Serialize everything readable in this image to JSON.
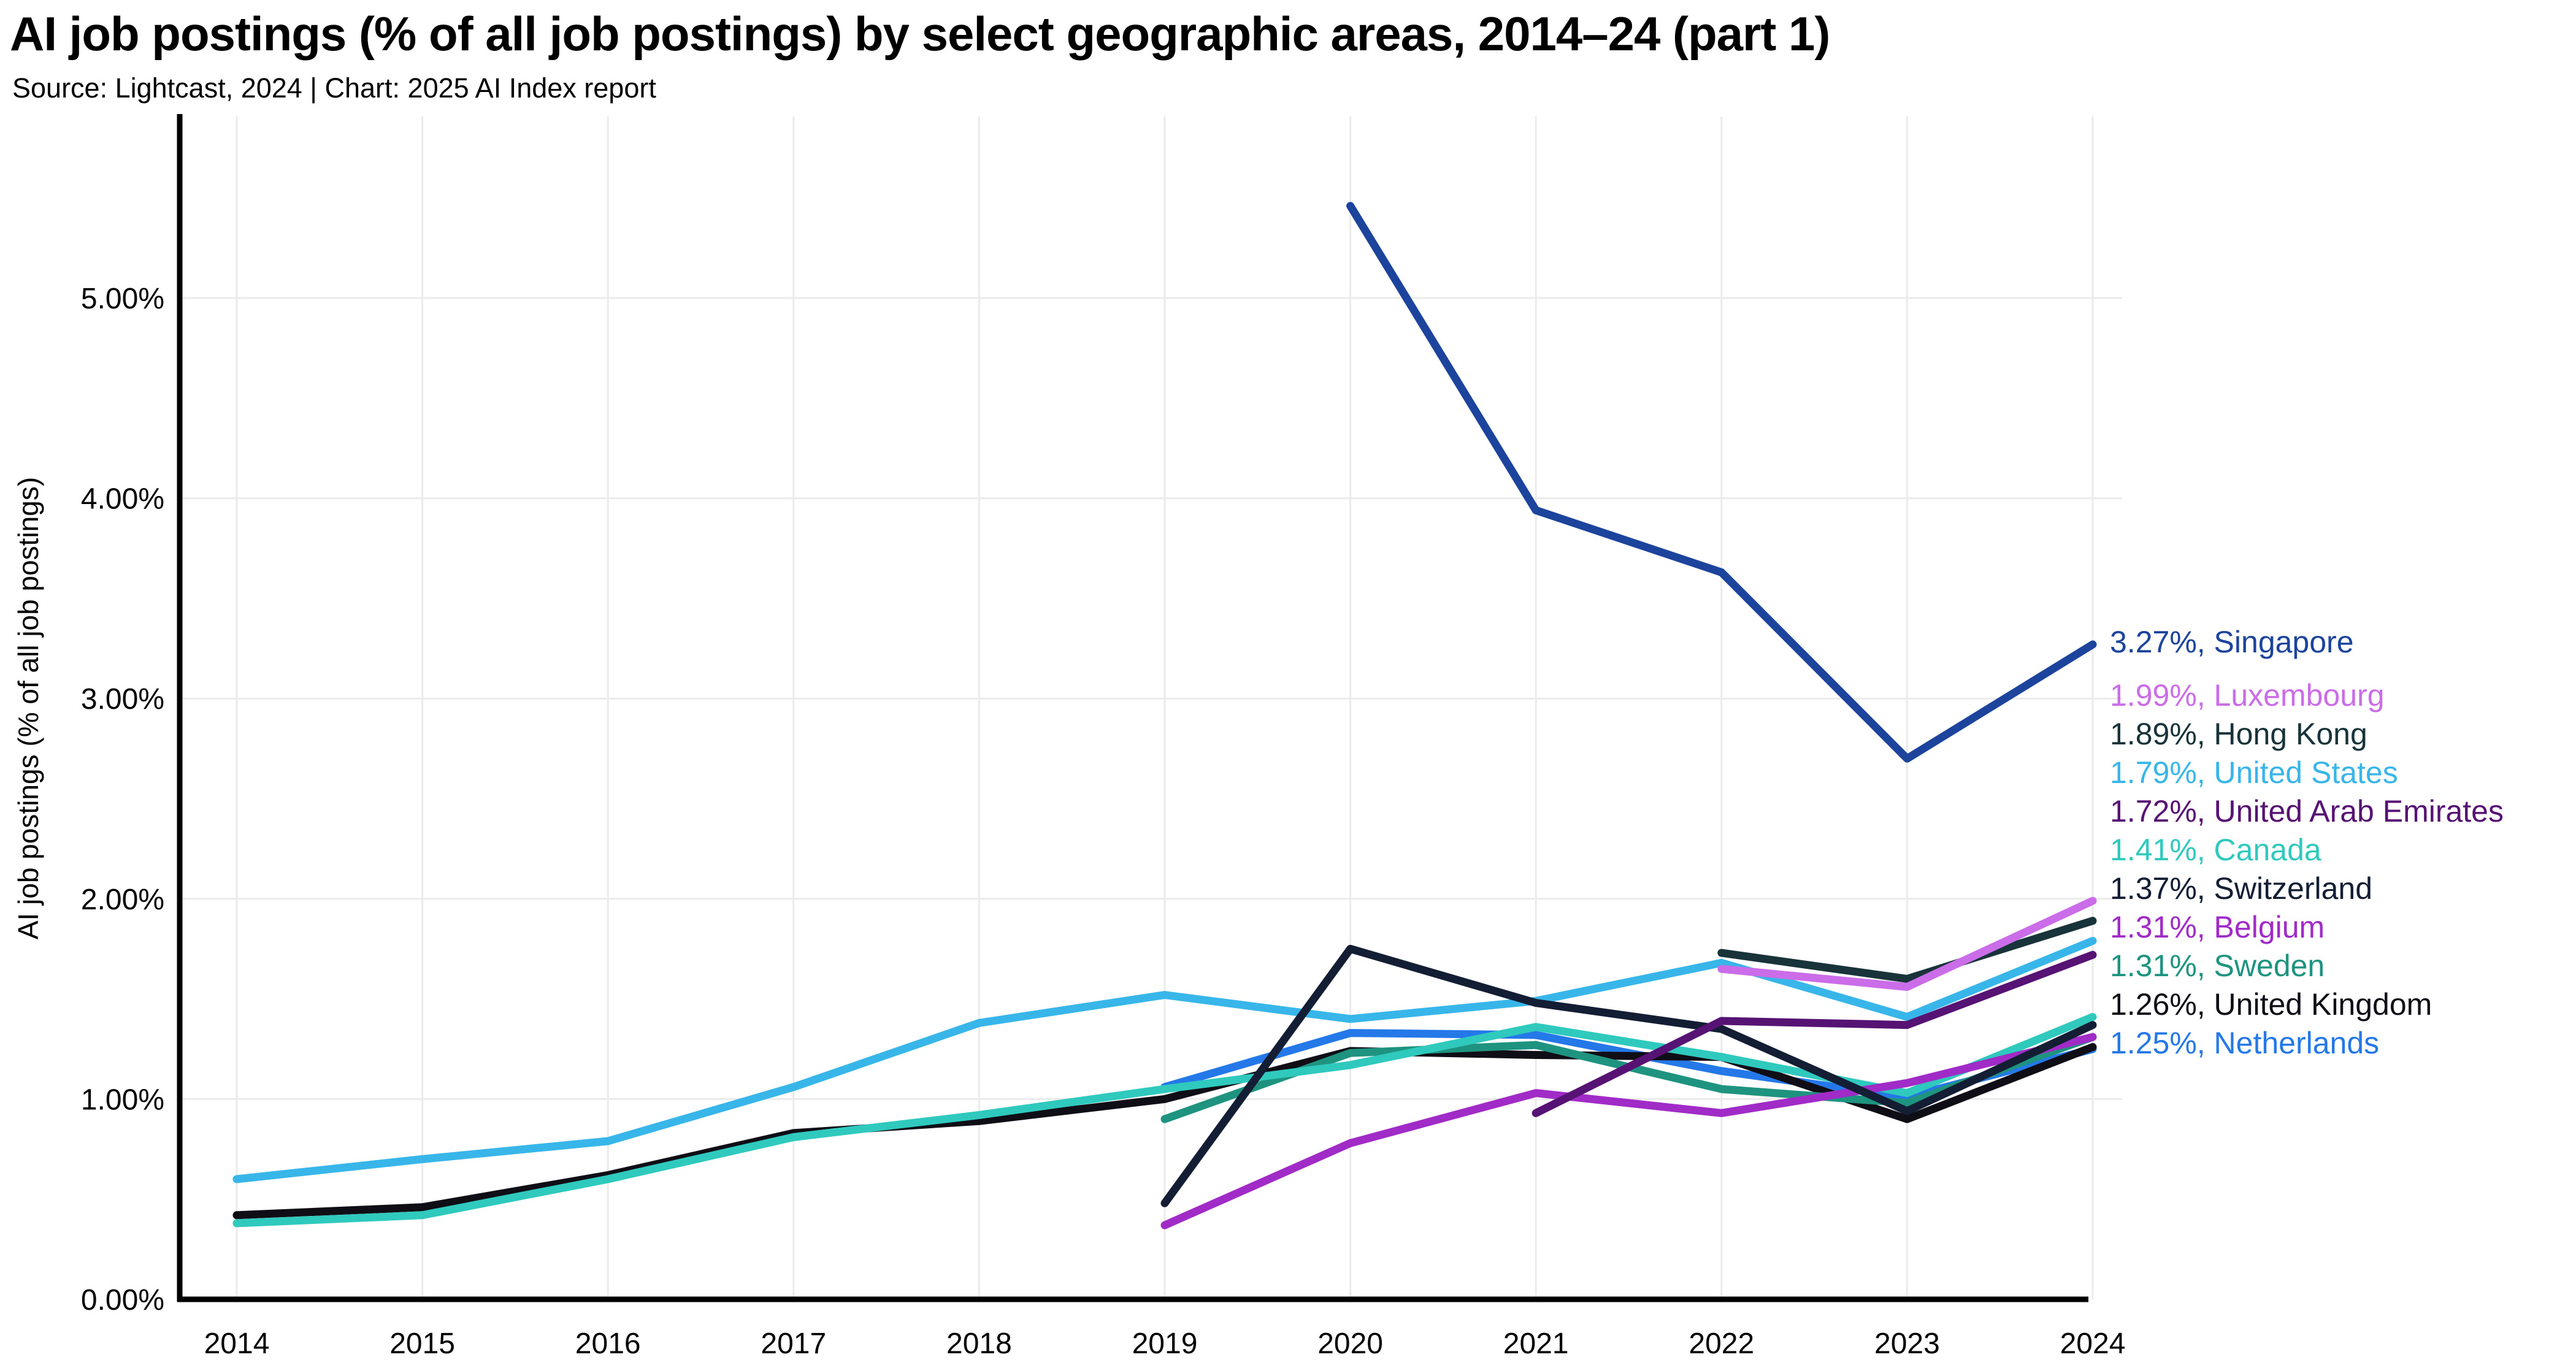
{
  "header": {
    "title": "AI job postings (% of all job postings) by select geographic areas, 2014–24 (part 1)",
    "subtitle": "Source: Lightcast, 2024 | Chart: 2025 AI Index report"
  },
  "chart_data": {
    "type": "line",
    "title": "AI job postings (% of all job postings) by select geographic areas, 2014–24 (part 1)",
    "xlabel": "",
    "ylabel": "AI job postings (% of all job postings)",
    "x": [
      2014,
      2015,
      2016,
      2017,
      2018,
      2019,
      2020,
      2021,
      2022,
      2023,
      2024
    ],
    "x_tick_labels": [
      "2014",
      "2015",
      "2016",
      "2017",
      "2018",
      "2019",
      "2020",
      "2021",
      "2022",
      "2023",
      "2024"
    ],
    "ylim": [
      0,
      5.9
    ],
    "yticks": [
      0,
      1,
      2,
      3,
      4,
      5
    ],
    "ytick_labels": [
      "0.00%",
      "1.00%",
      "2.00%",
      "3.00%",
      "4.00%",
      "5.00%"
    ],
    "grid": true,
    "legend_position": "right",
    "series": [
      {
        "name": "Singapore",
        "color": "#1c449c",
        "end_label": "3.27%, Singapore",
        "values": [
          null,
          null,
          null,
          null,
          null,
          null,
          5.46,
          3.94,
          3.63,
          2.7,
          3.27
        ]
      },
      {
        "name": "Luxembourg",
        "color": "#cb6ce8",
        "end_label": "1.99%, Luxembourg",
        "values": [
          null,
          null,
          null,
          null,
          null,
          null,
          null,
          null,
          1.65,
          1.56,
          1.99
        ]
      },
      {
        "name": "Hong Kong",
        "color": "#18333a",
        "end_label": "1.89%, Hong Kong",
        "values": [
          null,
          null,
          null,
          null,
          null,
          null,
          null,
          null,
          1.73,
          1.6,
          1.89
        ]
      },
      {
        "name": "United States",
        "color": "#39b6e9",
        "end_label": "1.79%, United States",
        "values": [
          0.6,
          0.7,
          0.79,
          1.06,
          1.38,
          1.52,
          1.4,
          1.49,
          1.68,
          1.41,
          1.79
        ]
      },
      {
        "name": "United Arab Emirates",
        "color": "#571373",
        "end_label": "1.72%, United Arab Emirates",
        "values": [
          null,
          null,
          null,
          null,
          null,
          null,
          null,
          0.93,
          1.39,
          1.37,
          1.72
        ]
      },
      {
        "name": "Canada",
        "color": "#2fc9bd",
        "end_label": "1.41%, Canada",
        "values": [
          0.38,
          0.42,
          0.6,
          0.81,
          0.92,
          1.05,
          1.17,
          1.36,
          1.21,
          1.03,
          1.41
        ]
      },
      {
        "name": "Switzerland",
        "color": "#131d33",
        "end_label": "1.37%, Switzerland",
        "values": [
          null,
          null,
          null,
          null,
          null,
          0.48,
          1.75,
          1.48,
          1.35,
          0.94,
          1.37
        ]
      },
      {
        "name": "Belgium",
        "color": "#a12bc7",
        "end_label": "1.31%, Belgium",
        "values": [
          null,
          null,
          null,
          null,
          null,
          0.37,
          0.78,
          1.03,
          0.93,
          1.08,
          1.31
        ]
      },
      {
        "name": "Sweden",
        "color": "#1e9480",
        "end_label": "1.31%, Sweden",
        "values": [
          null,
          null,
          null,
          null,
          null,
          0.9,
          1.23,
          1.27,
          1.05,
          0.98,
          1.31
        ]
      },
      {
        "name": "United Kingdom",
        "color": "#0f0d15",
        "end_label": "1.26%, United Kingdom",
        "values": [
          0.42,
          0.46,
          0.62,
          0.83,
          0.89,
          1.0,
          1.24,
          1.22,
          1.21,
          0.9,
          1.26
        ]
      },
      {
        "name": "Netherlands",
        "color": "#2478e8",
        "end_label": "1.25%, Netherlands",
        "values": [
          null,
          null,
          null,
          null,
          null,
          1.06,
          1.33,
          1.32,
          1.14,
          1.01,
          1.25
        ]
      }
    ]
  },
  "style": {
    "grid_color": "#ebebeb",
    "axis_color": "#000000",
    "background": "#ffffff"
  }
}
